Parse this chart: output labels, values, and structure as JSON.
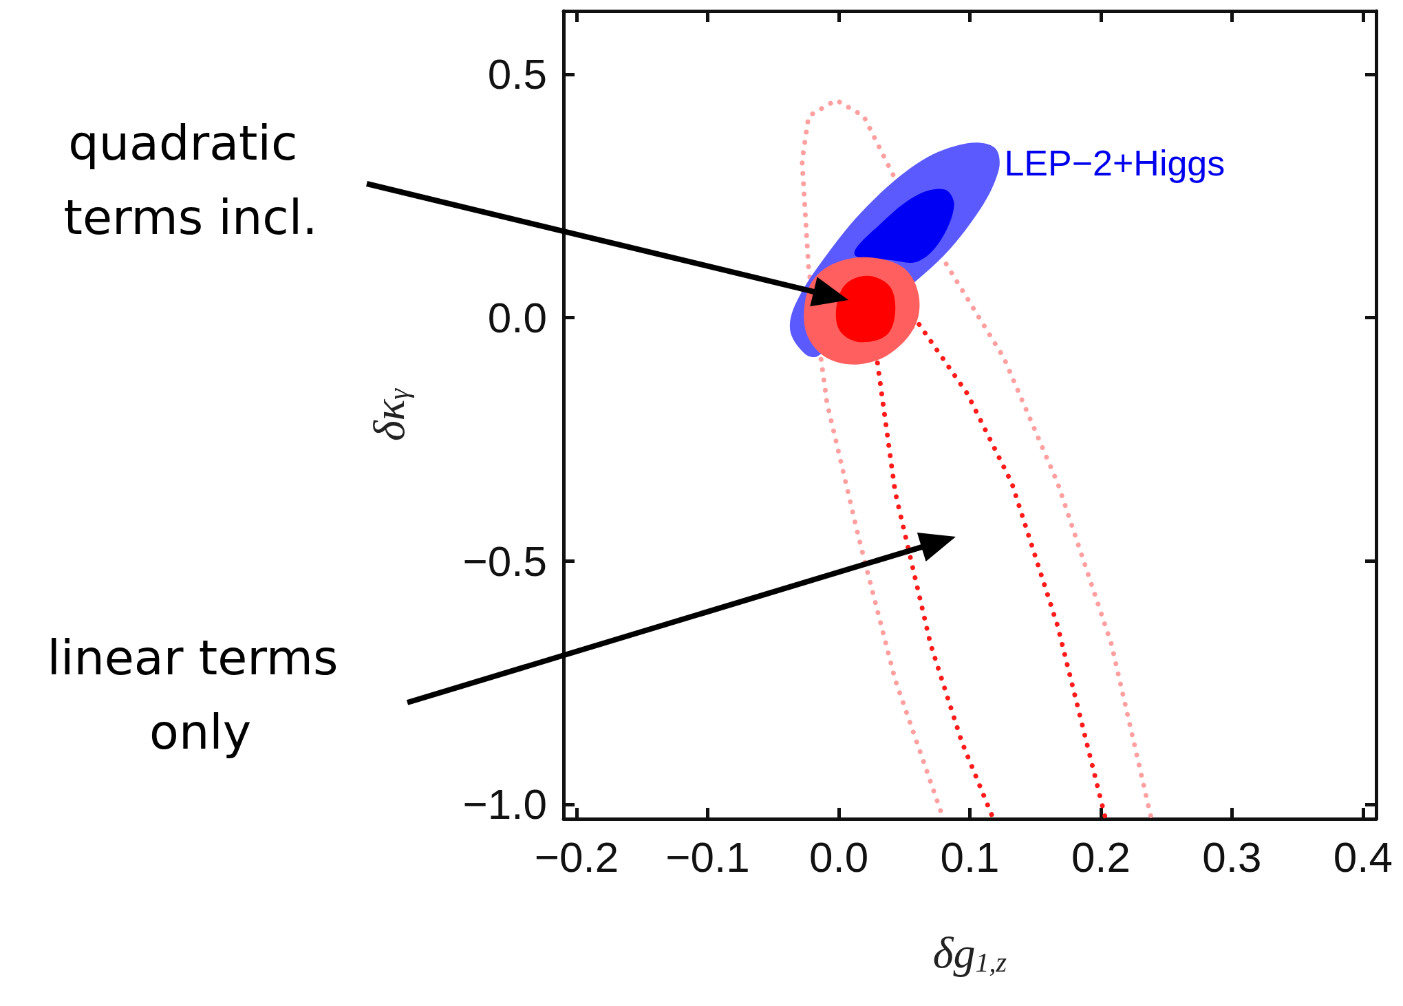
{
  "chart_data": {
    "type": "line",
    "xlabel": "δg$_{1,z}$",
    "ylabel": "δκ$_{γ}$",
    "xlim": [
      -0.21,
      0.41
    ],
    "xticks": [
      {
        "value": -0.2,
        "label": "−0.2"
      },
      {
        "value": -0.1,
        "label": "−0.1"
      },
      {
        "value": 0,
        "label": "0.0"
      },
      0.1,
      0.2,
      0.3,
      0.4
    ],
    "ylim": [
      -1.03,
      0.63
    ],
    "yticks": [
      {
        "value": -1,
        "label": "−1.0"
      },
      {
        "value": -0.5,
        "label": "−0.5"
      },
      {
        "value": 0,
        "label": "0.0"
      },
      0.5
    ],
    "grid": false,
    "legend": false,
    "marker": "none",
    "annotations": [
      "quadratic terms incl.",
      "linear terms only"
    ],
    "series": [
      {
        "line_style": "dotted",
        "color": "#ff9f9f",
        "x": [
          0.079,
          0.043,
          0.015,
          -0.009,
          -0.023,
          -0.028,
          -0.023,
          -0.002,
          0.019,
          0.043,
          0.084,
          0.126,
          0.167,
          0.208,
          0.238
        ],
        "values": [
          -1.024,
          -0.744,
          -0.45,
          -0.175,
          0.101,
          0.322,
          0.414,
          0.447,
          0.414,
          0.285,
          0.101,
          -0.083,
          -0.34,
          -0.671,
          -1.024
        ]
      },
      {
        "line_style": "dotted",
        "color": "#ff1a1a",
        "x": [
          0.117,
          0.094,
          0.07,
          0.043,
          0.029,
          0.06,
          0.098,
          0.132,
          0.167,
          0.203
        ],
        "values": [
          -1.024,
          -0.873,
          -0.671,
          -0.358,
          -0.083,
          -0.009,
          -0.156,
          -0.34,
          -0.634,
          -1.024
        ]
      },
      {
        "type": "area",
        "name": "LEP−2+Higgs",
        "color": "#5a5aff",
        "x": [
          -0.026,
          -0.037,
          -0.033,
          -0.012,
          0.022,
          0.063,
          0.098,
          0.119,
          0.122,
          0.105,
          0.07,
          -0.016
        ],
        "values": [
          -0.074,
          -0.028,
          0.028,
          0.119,
          0.23,
          0.322,
          0.358,
          0.349,
          0.303,
          0.211,
          0.101,
          -0.079
        ]
      },
      {
        "type": "area",
        "color": "#0000f5",
        "x": [
          0.012,
          0.032,
          0.06,
          0.081,
          0.088,
          0.077,
          0.06,
          0.04
        ],
        "values": [
          0.13,
          0.193,
          0.252,
          0.263,
          0.23,
          0.156,
          0.115,
          0.118
        ]
      },
      {
        "type": "area",
        "color": "#ff5f5f",
        "x": [
          -0.026,
          -0.018,
          0.001,
          0.026,
          0.05,
          0.061,
          0.058,
          0.039,
          0.015,
          -0.009,
          -0.024
        ],
        "values": [
          0.028,
          0.083,
          0.116,
          0.123,
          0.101,
          0.046,
          -0.018,
          -0.074,
          -0.096,
          -0.083,
          -0.037
        ]
      },
      {
        "type": "area",
        "color": "#ff0000",
        "x": [
          -0.002,
          0.005,
          0.022,
          0.039,
          0.043,
          0.036,
          0.015,
          0.001
        ],
        "values": [
          0.018,
          0.068,
          0.086,
          0.064,
          0.009,
          -0.037,
          -0.05,
          -0.028
        ]
      }
    ]
  }
}
